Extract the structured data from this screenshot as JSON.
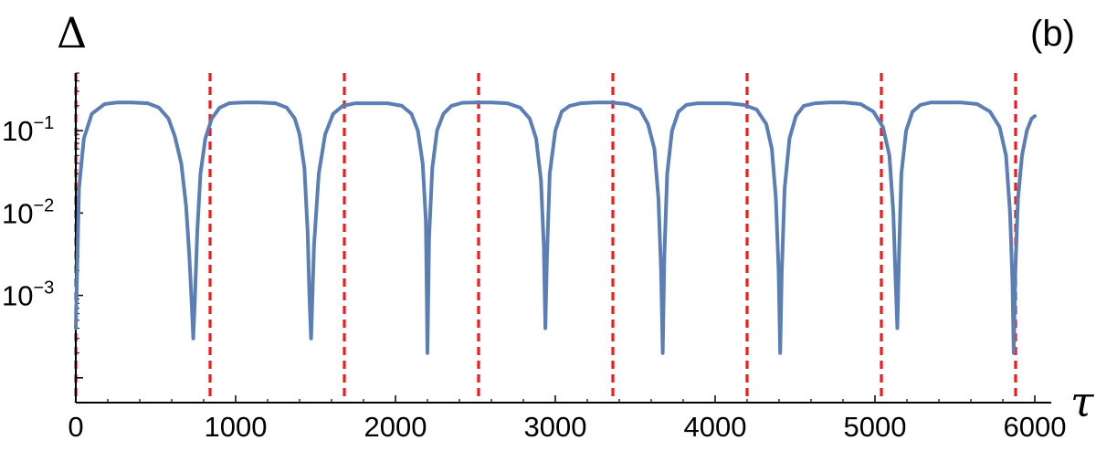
{
  "chart_data": {
    "type": "line",
    "panel_label": "(b)",
    "xlabel": "τ",
    "ylabel": "Δ",
    "x_scale": "linear",
    "y_scale": "log",
    "xlim": [
      0,
      6000
    ],
    "ylim": [
      5e-05,
      0.5
    ],
    "x_ticks": [
      0,
      1000,
      2000,
      3000,
      4000,
      5000,
      6000
    ],
    "x_tick_labels": [
      "0",
      "1000",
      "2000",
      "3000",
      "4000",
      "5000",
      "6000"
    ],
    "y_ticks": [
      0.1,
      0.01,
      0.001
    ],
    "y_tick_labels": [
      {
        "base": "10",
        "exp": "−1"
      },
      {
        "base": "10",
        "exp": "−2"
      },
      {
        "base": "10",
        "exp": "−3"
      }
    ],
    "grid": false,
    "series": [
      {
        "color": "#5b7fb5",
        "style": "solid",
        "x": [
          0,
          20,
          50,
          100,
          180,
          260,
          350,
          450,
          520,
          580,
          620,
          660,
          690,
          710,
          725,
          735,
          745,
          760,
          780,
          810,
          850,
          900,
          960,
          1050,
          1150,
          1250,
          1320,
          1370,
          1400,
          1430,
          1450,
          1462,
          1472,
          1490,
          1520,
          1560,
          1610,
          1670,
          1750,
          1850,
          1950,
          2040,
          2100,
          2140,
          2170,
          2190,
          2200,
          2210,
          2230,
          2260,
          2300,
          2350,
          2420,
          2500,
          2600,
          2700,
          2780,
          2840,
          2880,
          2910,
          2928,
          2938,
          2948,
          2965,
          3000,
          3040,
          3090,
          3160,
          3250,
          3350,
          3450,
          3530,
          3580,
          3620,
          3645,
          3662,
          3672,
          3682,
          3700,
          3730,
          3770,
          3820,
          3890,
          3980,
          4080,
          4180,
          4260,
          4320,
          4355,
          4380,
          4397,
          4407,
          4417,
          4435,
          4465,
          4505,
          4555,
          4625,
          4710,
          4810,
          4910,
          4990,
          5050,
          5090,
          5115,
          5130,
          5140,
          5150,
          5165,
          5195,
          5235,
          5285,
          5350,
          5440,
          5540,
          5640,
          5720,
          5780,
          5820,
          5845,
          5860,
          5868,
          5878,
          5895,
          5920,
          5950,
          5980,
          6000
        ],
        "y": [
          0.0004,
          0.02,
          0.08,
          0.16,
          0.21,
          0.22,
          0.22,
          0.215,
          0.19,
          0.14,
          0.085,
          0.04,
          0.012,
          0.003,
          0.0008,
          0.0003,
          0.0009,
          0.006,
          0.03,
          0.08,
          0.14,
          0.19,
          0.215,
          0.22,
          0.22,
          0.215,
          0.19,
          0.14,
          0.09,
          0.035,
          0.006,
          0.0009,
          0.0003,
          0.004,
          0.03,
          0.09,
          0.16,
          0.2,
          0.215,
          0.215,
          0.215,
          0.2,
          0.16,
          0.1,
          0.04,
          0.008,
          0.0002,
          0.005,
          0.035,
          0.1,
          0.16,
          0.2,
          0.218,
          0.22,
          0.22,
          0.215,
          0.19,
          0.14,
          0.08,
          0.025,
          0.004,
          0.0004,
          0.003,
          0.03,
          0.1,
          0.17,
          0.2,
          0.215,
          0.22,
          0.22,
          0.21,
          0.18,
          0.12,
          0.06,
          0.015,
          0.002,
          0.0002,
          0.003,
          0.03,
          0.1,
          0.17,
          0.205,
          0.215,
          0.215,
          0.215,
          0.205,
          0.18,
          0.12,
          0.06,
          0.015,
          0.002,
          0.0002,
          0.002,
          0.02,
          0.08,
          0.15,
          0.2,
          0.215,
          0.22,
          0.22,
          0.21,
          0.17,
          0.11,
          0.05,
          0.01,
          0.0013,
          0.0004,
          0.003,
          0.03,
          0.1,
          0.17,
          0.205,
          0.22,
          0.22,
          0.22,
          0.21,
          0.17,
          0.11,
          0.05,
          0.01,
          0.0015,
          0.0002,
          0.002,
          0.015,
          0.05,
          0.1,
          0.14,
          0.15
        ]
      }
    ],
    "vertical_lines": {
      "color": "#ee1c1c",
      "style": "dashed",
      "x": [
        0,
        840,
        1680,
        2520,
        3360,
        4200,
        5040,
        5880
      ]
    }
  }
}
